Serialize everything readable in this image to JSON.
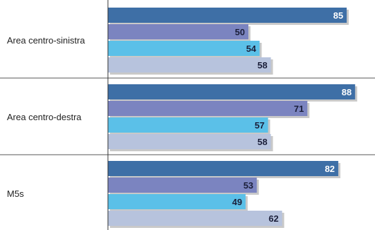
{
  "chart_data": {
    "type": "bar",
    "orientation": "horizontal",
    "title": "",
    "xlabel": "",
    "ylabel": "",
    "grid": false,
    "xlim": [
      0,
      100
    ],
    "categories": [
      "Area centro-sinistra",
      "Area centro-destra",
      "M5s"
    ],
    "series": [
      {
        "color": "#3e6fa6",
        "label_color": "#ffffff",
        "values": [
          85,
          88,
          82
        ]
      },
      {
        "color": "#7b84c0",
        "label_color": "#1b1f3a",
        "values": [
          50,
          71,
          53
        ]
      },
      {
        "color": "#5bc0e8",
        "label_color": "#1b1f3a",
        "values": [
          54,
          57,
          49
        ]
      },
      {
        "color": "#b7c3dd",
        "label_color": "#1b1f3a",
        "values": [
          58,
          58,
          62
        ]
      }
    ]
  }
}
